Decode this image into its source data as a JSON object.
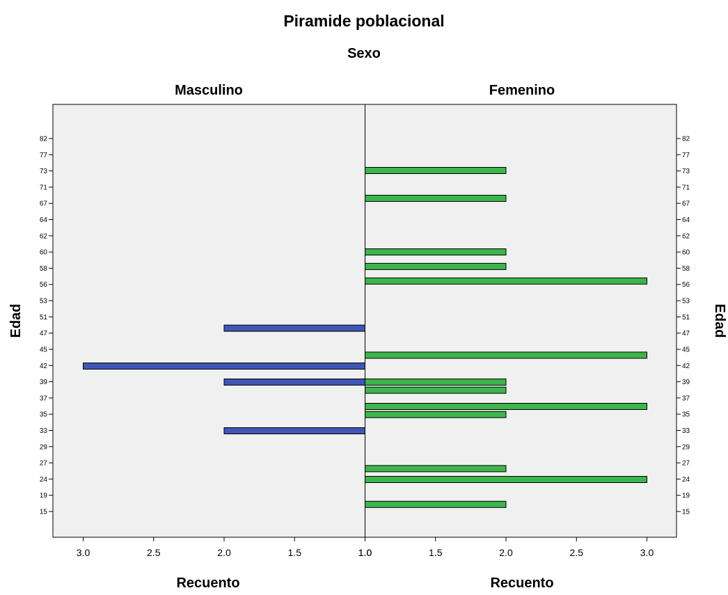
{
  "chart_data": {
    "type": "bar",
    "orientation": "horizontal",
    "title": "Piramide poblacional",
    "subtitle": "Sexo",
    "ylabel": "Edad",
    "xlabel": "Recuento",
    "categories": [
      "82",
      "77",
      "73",
      "71",
      "67",
      "64",
      "62",
      "60",
      "58",
      "56",
      "53",
      "51",
      "47",
      "45",
      "42",
      "39",
      "37",
      "35",
      "33",
      "29",
      "27",
      "24",
      "19",
      "15"
    ],
    "xlim": [
      1.0,
      3.0
    ],
    "xticks": [
      "3.0",
      "2.5",
      "2.0",
      "1.5",
      "1.0"
    ],
    "xticks_right": [
      "1.0",
      "1.5",
      "2.0",
      "2.5",
      "3.0"
    ],
    "series": [
      {
        "name": "Masculino",
        "color": "#3f56b5",
        "side": "left",
        "bars": [
          {
            "age": 49,
            "value": 2
          },
          {
            "age": 42,
            "value": 3
          },
          {
            "age": 39,
            "value": 2
          },
          {
            "age": 33,
            "value": 2
          }
        ]
      },
      {
        "name": "Femenino",
        "color": "#3cb54a",
        "side": "right",
        "bars": [
          {
            "age": 73,
            "value": 2
          },
          {
            "age": 68,
            "value": 2
          },
          {
            "age": 60,
            "value": 2
          },
          {
            "age": 58,
            "value": 2
          },
          {
            "age": 56,
            "value": 3
          },
          {
            "age": 44,
            "value": 3
          },
          {
            "age": 39,
            "value": 2
          },
          {
            "age": 38,
            "value": 2
          },
          {
            "age": 36,
            "value": 3
          },
          {
            "age": 35,
            "value": 2
          },
          {
            "age": 26,
            "value": 2
          },
          {
            "age": 24,
            "value": 3
          },
          {
            "age": 17,
            "value": 2
          }
        ]
      }
    ]
  }
}
